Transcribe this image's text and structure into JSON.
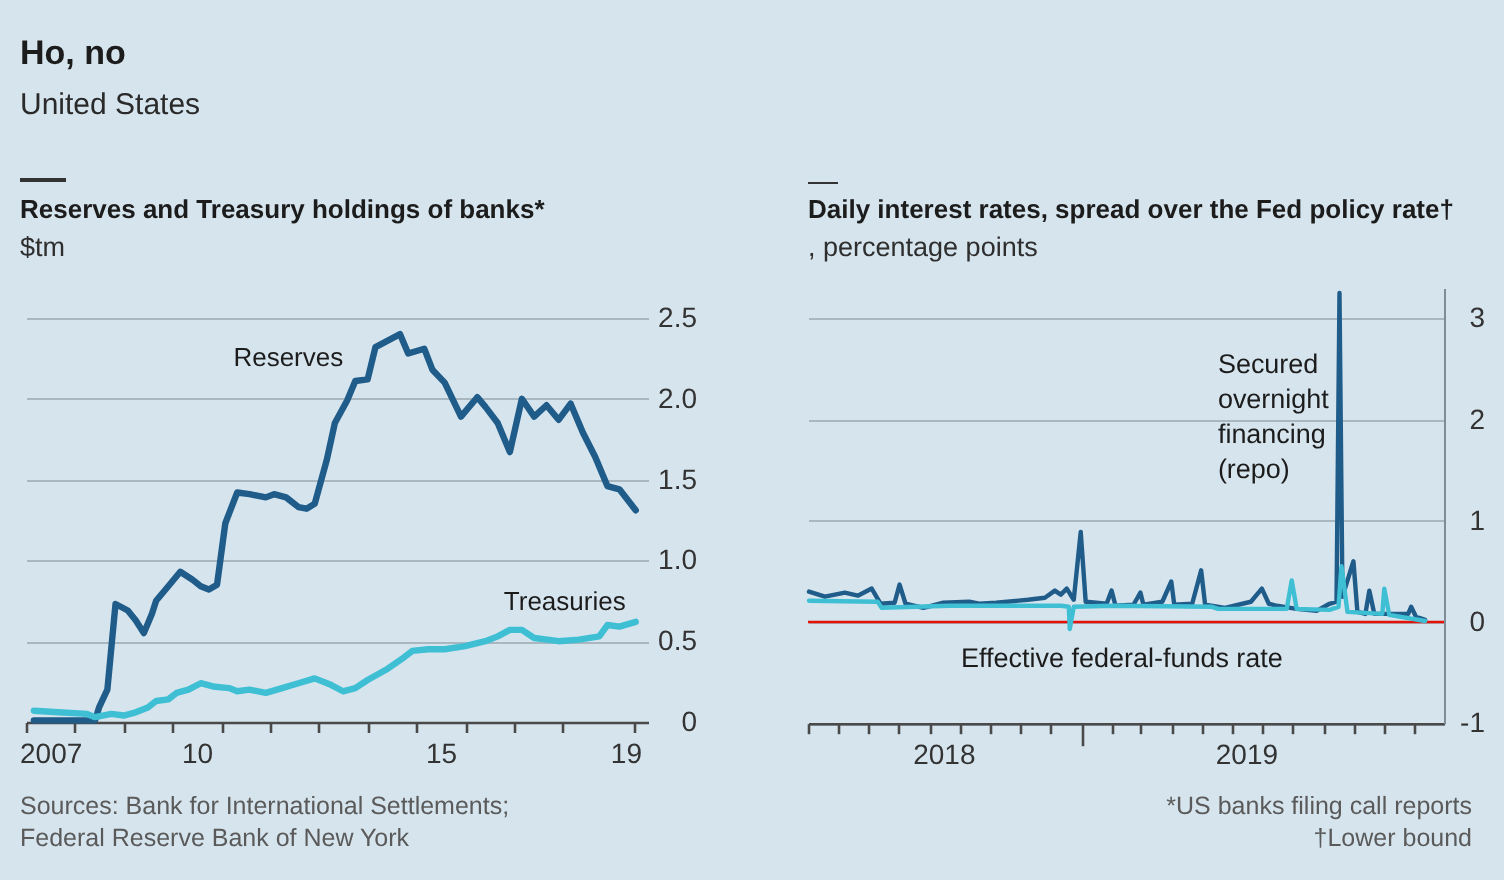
{
  "chart_data": [
    {
      "type": "other",
      "title": "Ho, no",
      "subtitle": "United States"
    },
    {
      "type": "line",
      "title": "Reserves and Treasury holdings of banks*",
      "ylabel": "$tm",
      "xlim": [
        "2007-01-01",
        "2019-10-01"
      ],
      "xticks": [
        {
          "value": "2007-01-01",
          "label": null
        },
        {
          "value": "2007-07-01",
          "label": "2007"
        },
        {
          "value": "2008-01-01",
          "label": null
        },
        {
          "value": "2009-01-01",
          "label": null
        },
        {
          "value": "2010-01-01",
          "label": null
        },
        {
          "value": "2010-07-01",
          "label": "10"
        },
        {
          "value": "2011-01-01",
          "label": null
        },
        {
          "value": "2012-01-01",
          "label": null
        },
        {
          "value": "2013-01-01",
          "label": null
        },
        {
          "value": "2014-01-01",
          "label": null
        },
        {
          "value": "2015-01-01",
          "label": null
        },
        {
          "value": "2015-07-01",
          "label": "15"
        },
        {
          "value": "2016-01-01",
          "label": null
        },
        {
          "value": "2017-01-01",
          "label": null
        },
        {
          "value": "2018-01-01",
          "label": null
        },
        {
          "value": "2019-04-15",
          "label": "19"
        },
        {
          "value": "2019-06-20",
          "label": null
        }
      ],
      "ylim": [
        0,
        2.5
      ],
      "yticks": [
        0,
        0.5,
        {
          "value": 1,
          "label": "1.0"
        },
        1.5,
        {
          "value": 2,
          "label": "2.0"
        },
        2.5
      ],
      "grid": "y",
      "series": [
        {
          "name": "Reserves",
          "color": "#1f5c8a",
          "x": [
            "2007-03",
            "2008-06",
            "2008-07",
            "2008-09",
            "2008-11",
            "2009-02",
            "2009-04",
            "2009-06",
            "2009-08",
            "2009-09",
            "2009-12",
            "2010-03",
            "2010-06",
            "2010-08",
            "2010-10",
            "2010-12",
            "2011-02",
            "2011-05",
            "2011-08",
            "2011-12",
            "2012-02",
            "2012-05",
            "2012-08",
            "2012-10",
            "2012-12",
            "2013-03",
            "2013-05",
            "2013-08",
            "2013-10",
            "2014-01",
            "2014-03",
            "2014-06",
            "2014-09",
            "2014-11",
            "2015-03",
            "2015-05",
            "2015-08",
            "2015-12",
            "2016-04",
            "2016-06",
            "2016-09",
            "2016-12",
            "2017-03",
            "2017-06",
            "2017-09",
            "2017-12",
            "2018-03",
            "2018-06",
            "2018-09",
            "2018-12",
            "2019-03",
            "2019-07"
          ],
          "values": [
            0.01,
            0.01,
            0.09,
            0.2,
            0.73,
            0.69,
            0.63,
            0.55,
            0.67,
            0.75,
            0.84,
            0.93,
            0.88,
            0.84,
            0.82,
            0.85,
            1.23,
            1.42,
            1.41,
            1.39,
            1.41,
            1.39,
            1.33,
            1.32,
            1.35,
            1.62,
            1.85,
            1.99,
            2.11,
            2.12,
            2.32,
            2.36,
            2.4,
            2.28,
            2.31,
            2.18,
            2.1,
            1.89,
            2.01,
            1.95,
            1.85,
            1.67,
            2.0,
            1.89,
            1.96,
            1.87,
            1.97,
            1.79,
            1.64,
            1.46,
            1.44,
            1.31
          ]
        },
        {
          "name": "Treasuries",
          "color": "#3fbfd3",
          "x": [
            "2007-03",
            "2007-09",
            "2008-04",
            "2008-06",
            "2008-10",
            "2009-01",
            "2009-04",
            "2009-07",
            "2009-09",
            "2009-12",
            "2010-02",
            "2010-05",
            "2010-08",
            "2010-11",
            "2011-03",
            "2011-05",
            "2011-08",
            "2011-12",
            "2012-04",
            "2012-08",
            "2012-12",
            "2013-04",
            "2013-07",
            "2013-10",
            "2014-01",
            "2014-06",
            "2014-10",
            "2014-12",
            "2015-04",
            "2015-08",
            "2016-01",
            "2016-06",
            "2016-09",
            "2016-12",
            "2017-03",
            "2017-06",
            "2017-12",
            "2018-05",
            "2018-10",
            "2018-12",
            "2019-03",
            "2019-07"
          ],
          "values": [
            0.07,
            0.06,
            0.05,
            0.03,
            0.05,
            0.04,
            0.06,
            0.09,
            0.13,
            0.14,
            0.18,
            0.2,
            0.24,
            0.22,
            0.21,
            0.19,
            0.2,
            0.18,
            0.21,
            0.24,
            0.27,
            0.23,
            0.19,
            0.21,
            0.26,
            0.33,
            0.4,
            0.44,
            0.45,
            0.45,
            0.47,
            0.5,
            0.53,
            0.57,
            0.57,
            0.52,
            0.5,
            0.51,
            0.53,
            0.6,
            0.59,
            0.62
          ]
        }
      ],
      "annotations": [
        "Sources: Bank for International Settlements; Federal Reserve Bank of New York"
      ]
    },
    {
      "type": "line",
      "title": "Daily interest rates, spread over the Fed policy rate†",
      "ylabel": ", percentage points",
      "xlim": [
        "2018-04-01",
        "2019-12-31"
      ],
      "xticks": [
        {
          "value": "2018-04-01",
          "label": null
        },
        {
          "value": "2018-05-01",
          "label": null
        },
        {
          "value": "2018-06-01",
          "label": null
        },
        {
          "value": "2018-07-01",
          "label": null
        },
        {
          "value": "2018-08-01",
          "label": null
        },
        {
          "value": "2018-08-15",
          "label": "2018"
        },
        {
          "value": "2018-09-01",
          "label": null
        },
        {
          "value": "2018-10-01",
          "label": null
        },
        {
          "value": "2018-11-01",
          "label": null
        },
        {
          "value": "2018-12-01",
          "label": null
        },
        {
          "value": "2019-01-01",
          "label": null
        },
        {
          "value": "2019-02-01",
          "label": null
        },
        {
          "value": "2019-03-01",
          "label": null
        },
        {
          "value": "2019-04-01",
          "label": null
        },
        {
          "value": "2019-05-01",
          "label": null
        },
        {
          "value": "2019-06-01",
          "label": null
        },
        {
          "value": "2019-06-15",
          "label": "2019"
        },
        {
          "value": "2019-07-01",
          "label": null
        },
        {
          "value": "2019-08-01",
          "label": null
        },
        {
          "value": "2019-09-01",
          "label": null
        },
        {
          "value": "2019-10-01",
          "label": null
        },
        {
          "value": "2019-11-01",
          "label": null
        },
        {
          "value": "2019-12-01",
          "label": null
        }
      ],
      "ylim": [
        -1,
        3.3
      ],
      "yticks": [
        -1,
        0,
        1,
        2,
        3
      ],
      "grid": "y",
      "ref_lines": [
        {
          "axis": "y",
          "value": 0,
          "color": "#e3120b"
        }
      ],
      "series": [
        {
          "name": "Secured overnight financing (repo)",
          "color": "#1f5c8a",
          "x": [
            "2018-04-02",
            "2018-04-18",
            "2018-05-08",
            "2018-05-21",
            "2018-06-04",
            "2018-06-13",
            "2018-06-27",
            "2018-07-02",
            "2018-07-08",
            "2018-07-26",
            "2018-08-15",
            "2018-09-10",
            "2018-09-20",
            "2018-10-07",
            "2018-11-08",
            "2018-11-25",
            "2018-12-05",
            "2018-12-11",
            "2018-12-17",
            "2018-12-24",
            "2018-12-31",
            "2019-01-05",
            "2019-01-26",
            "2019-01-31",
            "2019-02-04",
            "2019-02-22",
            "2019-03-01",
            "2019-03-04",
            "2019-03-23",
            "2019-04-01",
            "2019-04-04",
            "2019-04-22",
            "2019-05-01",
            "2019-05-05",
            "2019-05-25",
            "2019-06-20",
            "2019-07-01",
            "2019-07-08",
            "2019-07-16",
            "2019-08-05",
            "2019-08-25",
            "2019-09-07",
            "2019-09-14",
            "2019-09-17",
            "2019-09-20",
            "2019-10-01",
            "2019-10-05",
            "2019-10-13",
            "2019-10-17",
            "2019-10-22",
            "2019-11-25",
            "2019-11-28",
            "2019-12-03",
            "2019-12-12"
          ],
          "values": [
            0.3,
            0.25,
            0.29,
            0.26,
            0.33,
            0.18,
            0.19,
            0.37,
            0.18,
            0.14,
            0.19,
            0.2,
            0.18,
            0.19,
            0.22,
            0.24,
            0.31,
            0.27,
            0.33,
            0.22,
            0.89,
            0.2,
            0.18,
            0.31,
            0.16,
            0.17,
            0.29,
            0.17,
            0.2,
            0.4,
            0.17,
            0.18,
            0.51,
            0.17,
            0.14,
            0.2,
            0.33,
            0.18,
            0.16,
            0.13,
            0.11,
            0.18,
            0.2,
            3.25,
            0.25,
            0.6,
            0.1,
            0.08,
            0.31,
            0.08,
            0.08,
            0.15,
            0.05,
            0.02
          ]
        },
        {
          "name": "Effective federal-funds rate",
          "color": "#3fbfd3",
          "x": [
            "2018-04-02",
            "2018-06-10",
            "2018-06-14",
            "2018-08-21",
            "2018-12-11",
            "2018-12-19",
            "2018-12-20",
            "2018-12-24",
            "2019-02-01",
            "2019-05-12",
            "2019-05-18",
            "2019-07-26",
            "2019-07-31",
            "2019-08-05",
            "2019-09-07",
            "2019-09-16",
            "2019-09-19",
            "2019-09-25",
            "2019-10-30",
            "2019-11-01",
            "2019-11-06",
            "2019-12-12"
          ],
          "values": [
            0.21,
            0.2,
            0.14,
            0.16,
            0.16,
            0.15,
            -0.07,
            0.15,
            0.16,
            0.15,
            0.13,
            0.13,
            0.41,
            0.13,
            0.12,
            0.15,
            0.55,
            0.1,
            0.08,
            0.33,
            0.07,
            0.01
          ]
        }
      ],
      "annotations": [
        "*US banks filing call reports",
        "†Lower bound"
      ]
    }
  ]
}
